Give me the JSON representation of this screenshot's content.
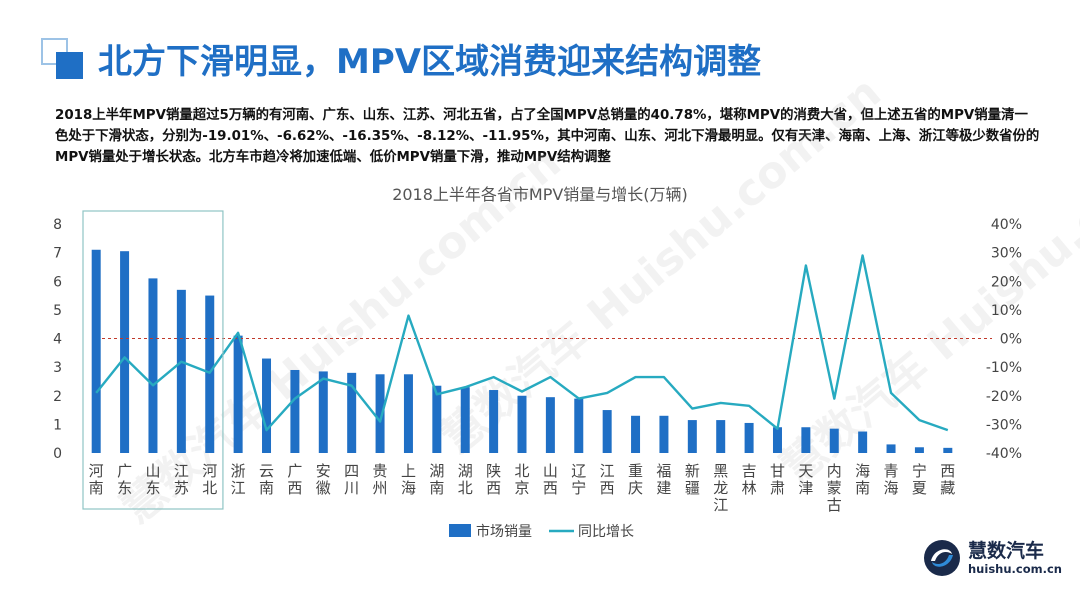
{
  "header": {
    "title": "北方下滑明显，MPV区域消费迎来结构调整"
  },
  "intro": {
    "text": "2018上半年MPV销量超过5万辆的有河南、广东、山东、江苏、河北五省，占了全国MPV总销量的40.78%，堪称MPV的消费大省，但上述五省的MPV销量清一色处于下滑状态，分别为-19.01%、-6.62%、-16.35%、-8.12%、-11.95%，其中河南、山东、河北下滑最明显。仅有天津、海南、上海、浙江等极少数省份的MPV销量处于增长状态。北方车市趋冷将加速低端、低价MPV销量下滑，推动MPV结构调整"
  },
  "watermark": {
    "text": "慧数汽车 Huishu.com.cn"
  },
  "logo": {
    "name": "慧数汽车",
    "url": "huishu.com.cn"
  },
  "colors": {
    "brand": "#1f6fc5",
    "bar": "#1f6fc5",
    "line": "#27aac0",
    "zero_line": "#c0392b",
    "highlight_box": "#8fc4c4"
  },
  "chart_data": {
    "type": "bar",
    "title": "2018上半年各省市MPV销量与增长(万辆)",
    "categories": [
      "河南",
      "广东",
      "山东",
      "江苏",
      "河北",
      "浙江",
      "云南",
      "广西",
      "安徽",
      "四川",
      "贵州",
      "上海",
      "湖南",
      "湖北",
      "陕西",
      "北京",
      "山西",
      "辽宁",
      "江西",
      "重庆",
      "福建",
      "新疆",
      "黑龙江",
      "吉林",
      "甘肃",
      "天津",
      "内蒙古",
      "海南",
      "青海",
      "宁夏",
      "西藏"
    ],
    "series": [
      {
        "name": "市场销量",
        "type": "bar",
        "axis": "left",
        "values": [
          7.1,
          7.05,
          6.1,
          5.7,
          5.5,
          4.1,
          3.3,
          2.9,
          2.85,
          2.8,
          2.75,
          2.75,
          2.35,
          2.3,
          2.2,
          2.0,
          1.95,
          1.9,
          1.5,
          1.3,
          1.3,
          1.15,
          1.15,
          1.05,
          0.9,
          0.9,
          0.85,
          0.75,
          0.3,
          0.2,
          0.18
        ]
      },
      {
        "name": "同比增长",
        "type": "line",
        "axis": "right",
        "values": [
          -19.01,
          -6.62,
          -16.35,
          -8.12,
          -11.95,
          2,
          -32,
          -21,
          -14,
          -16.5,
          -29,
          8,
          -19.5,
          -17,
          -13.5,
          -18.5,
          -13.5,
          -21,
          -19,
          -13.5,
          -13.5,
          -24.5,
          -22.5,
          -23.5,
          -31.5,
          25.5,
          -21,
          29,
          -19,
          -28.5,
          -32
        ]
      }
    ],
    "y_left": {
      "range": [
        0,
        8
      ],
      "ticks": [
        "0",
        "1",
        "2",
        "3",
        "4",
        "5",
        "6",
        "7",
        "8"
      ]
    },
    "y_right": {
      "range": [
        -40,
        40
      ],
      "ticks": [
        "-40%",
        "-30%",
        "-20%",
        "-10%",
        "0%",
        "10%",
        "20%",
        "30%",
        "40%"
      ]
    },
    "grid": false,
    "legend_position": "bottom",
    "highlight_first_n": 5
  }
}
